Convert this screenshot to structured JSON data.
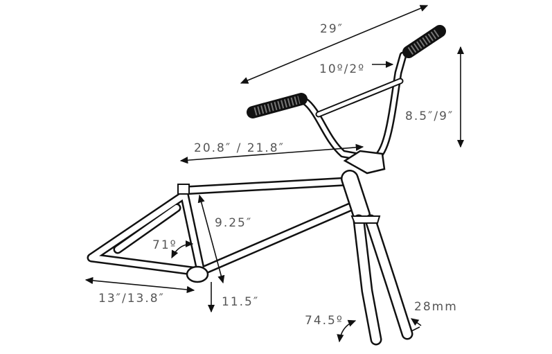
{
  "dimensions": {
    "bar_width": "29″",
    "bar_angle": "10º/2º",
    "bar_rise": "8.5″/9″",
    "top_tube": "20.8″ / 21.8″",
    "seat_tube": "9.25″",
    "seat_angle": "71º",
    "chainstay": "13″/13.8″",
    "bb_height": "11.5″",
    "head_angle": "74.5º",
    "fork_offset": "28mm"
  }
}
